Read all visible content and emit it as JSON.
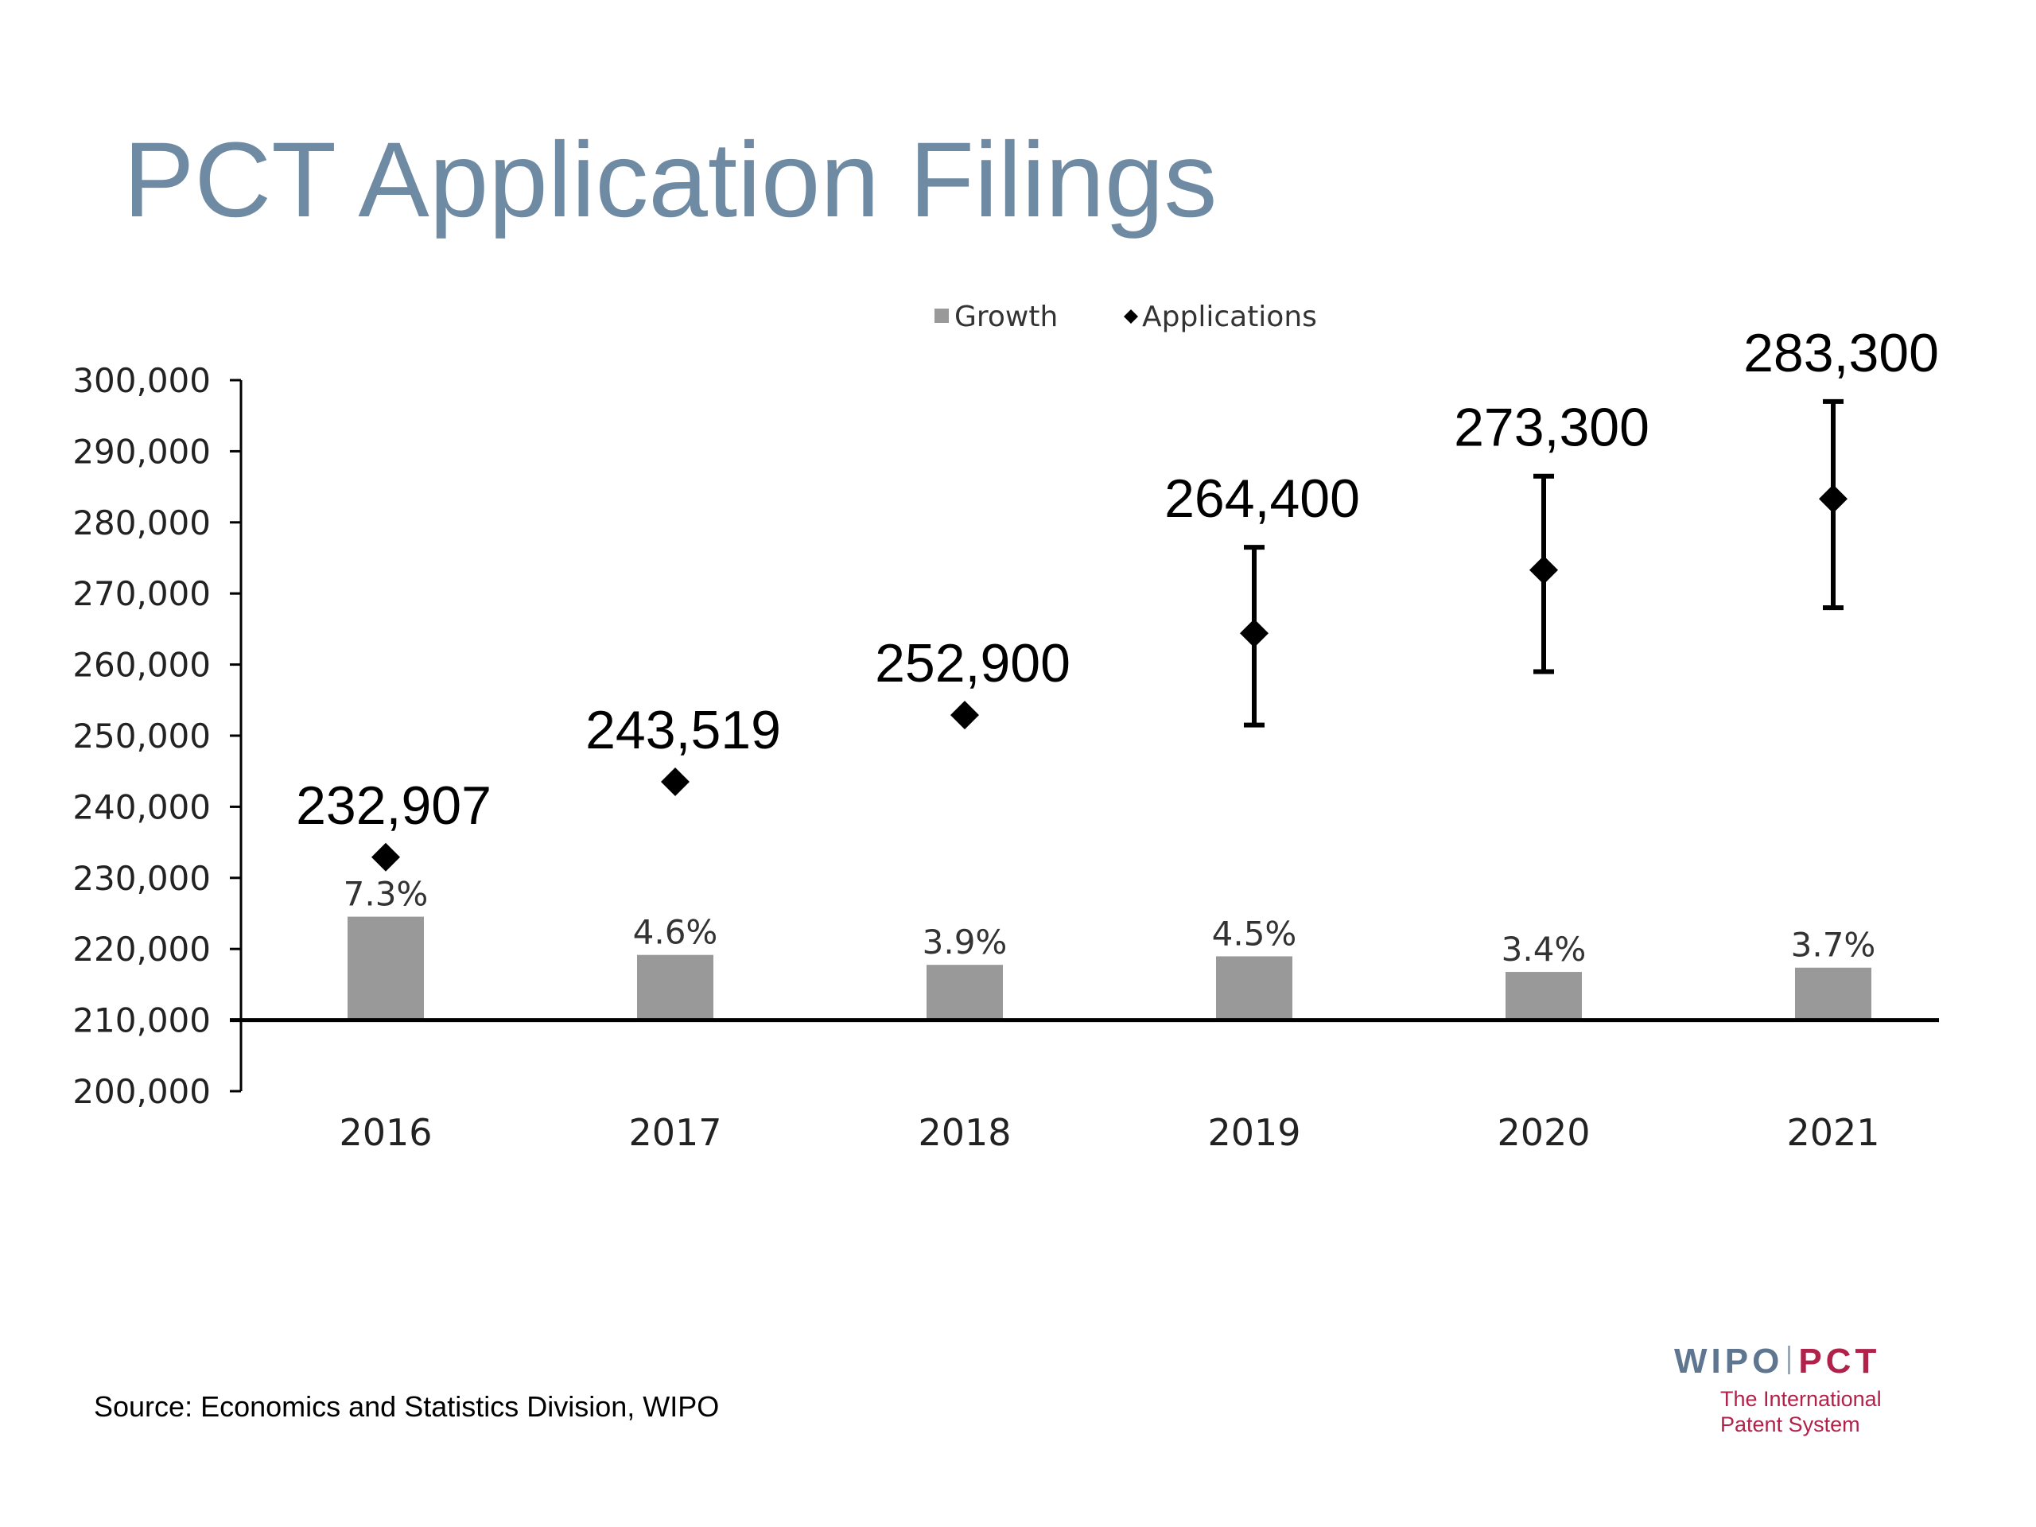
{
  "slide": {
    "title": "PCT Application Filings",
    "source": "Source:  Economics and Statistics Division, WIPO",
    "logo": {
      "wipo": "WIPO",
      "pct": "PCT",
      "tagline_line1": "The International",
      "tagline_line2": "Patent System"
    }
  },
  "chart_data": {
    "type": "bar",
    "categories": [
      "2016",
      "2017",
      "2018",
      "2019",
      "2020",
      "2021"
    ],
    "ylim": [
      200000,
      300000
    ],
    "yticks": [
      200000,
      210000,
      220000,
      230000,
      240000,
      250000,
      260000,
      270000,
      280000,
      290000,
      300000
    ],
    "ytick_labels": [
      "200,000",
      "210,000",
      "220,000",
      "230,000",
      "240,000",
      "250,000",
      "260,000",
      "270,000",
      "280,000",
      "290,000",
      "300,000"
    ],
    "legend": {
      "position": "top-center",
      "entries": [
        "Growth",
        "Applications"
      ]
    },
    "grid": false,
    "series": [
      {
        "name": "Growth",
        "kind": "bar",
        "color": "#999999",
        "values": [
          7.3,
          4.6,
          3.9,
          4.5,
          3.4,
          3.7
        ],
        "labels": [
          "7.3%",
          "4.6%",
          "3.9%",
          "4.5%",
          "3.4%",
          "3.7%"
        ]
      },
      {
        "name": "Applications",
        "kind": "scatter",
        "marker": "diamond",
        "color": "#000000",
        "values": [
          232907,
          243519,
          252900,
          264400,
          273300,
          283300
        ],
        "labels": [
          "232,907",
          "243,519",
          "252,900",
          "264,400",
          "273,300",
          "283,300"
        ],
        "error_bars": [
          null,
          null,
          null,
          [
            251500,
            276500
          ],
          [
            259000,
            286500
          ],
          [
            268000,
            297000
          ]
        ]
      }
    ]
  }
}
